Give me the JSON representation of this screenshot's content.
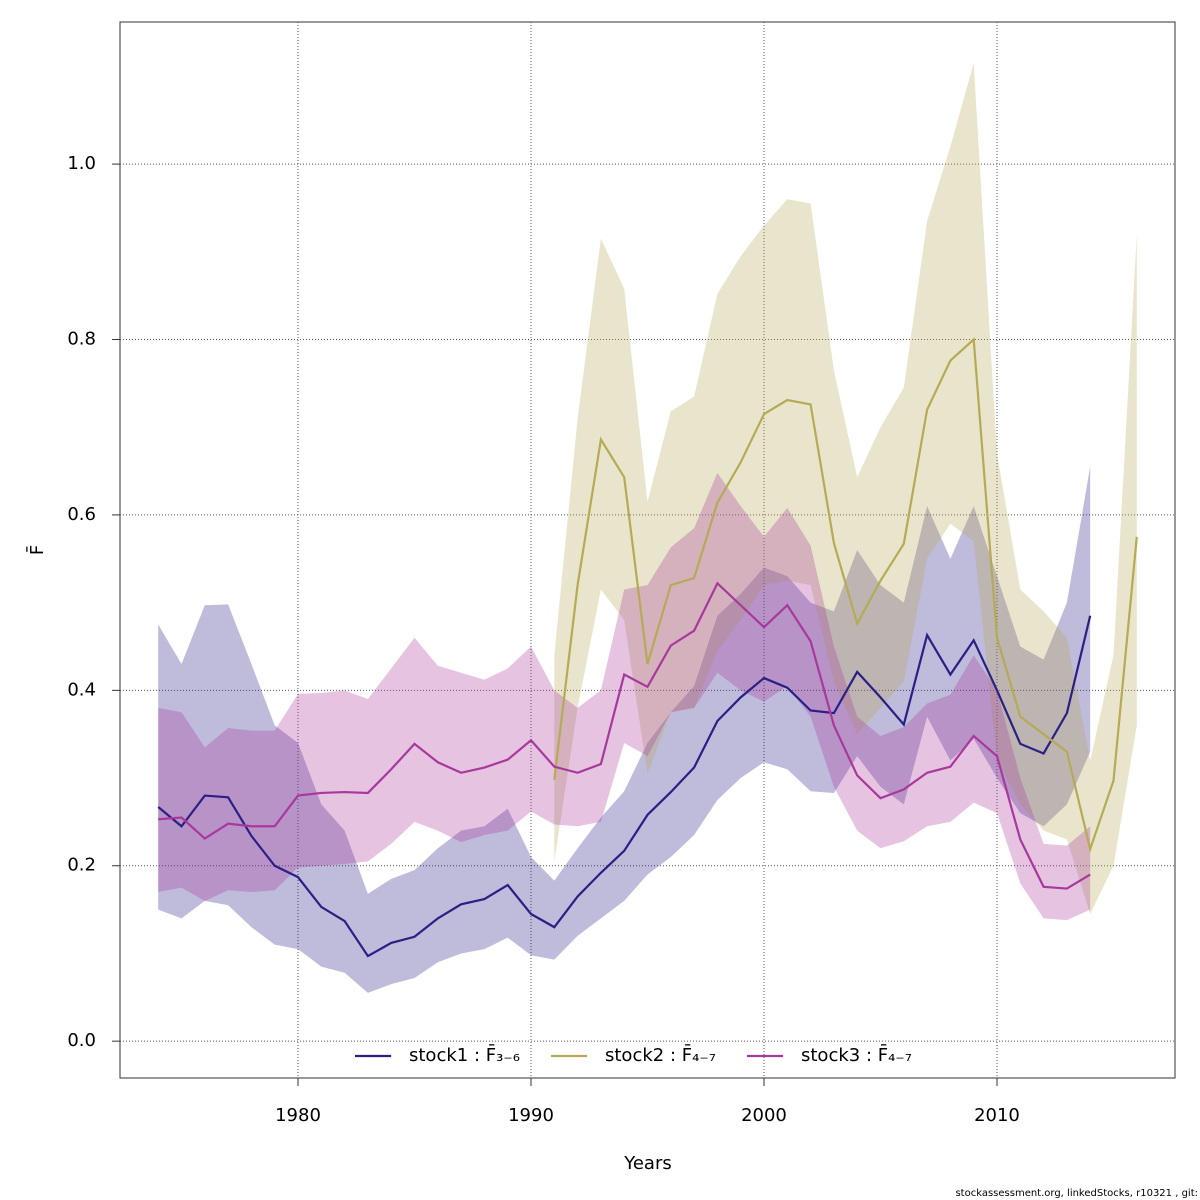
{
  "chart_data": {
    "type": "line",
    "xlabel": "Years",
    "ylabel": "F̄",
    "footer": "stockassessment.org, linkedStocks, r10321 , git:",
    "xlim": [
      1972.36,
      2017.64
    ],
    "ylim": [
      -0.042,
      1.162
    ],
    "xticks": [
      1980,
      1990,
      2000,
      2010
    ],
    "yticks": [
      {
        "value": 0,
        "label": "0.0"
      },
      0.2,
      0.4,
      0.6,
      0.8,
      {
        "value": 1,
        "label": "1.0"
      }
    ],
    "grid": true,
    "legend": "bottom",
    "series": [
      {
        "name": "stock1 : F̄₃₋₆",
        "color": "#2a1f85",
        "x": [
          1974,
          1975,
          1976,
          1977,
          1978,
          1979,
          1980,
          1981,
          1982,
          1983,
          1984,
          1985,
          1986,
          1987,
          1988,
          1989,
          1990,
          1991,
          1992,
          1993,
          1994,
          1995,
          1996,
          1997,
          1998,
          1999,
          2000,
          2001,
          2002,
          2003,
          2004,
          2005,
          2006,
          2007,
          2008,
          2009,
          2010,
          2011,
          2012,
          2013,
          2014
        ],
        "values": [
          0.267,
          0.245,
          0.28,
          0.278,
          0.234,
          0.2,
          0.187,
          0.153,
          0.137,
          0.097,
          0.112,
          0.119,
          0.14,
          0.156,
          0.162,
          0.178,
          0.145,
          0.13,
          0.165,
          0.192,
          0.217,
          0.258,
          0.284,
          0.312,
          0.365,
          0.392,
          0.414,
          0.403,
          0.377,
          0.374,
          0.421,
          0.392,
          0.361,
          0.463,
          0.418,
          0.457,
          0.4,
          0.339,
          0.328,
          0.374,
          0.485
        ],
        "upper": [
          0.475,
          0.43,
          0.497,
          0.498,
          0.43,
          0.36,
          0.34,
          0.27,
          0.24,
          0.168,
          0.185,
          0.195,
          0.22,
          0.24,
          0.245,
          0.265,
          0.21,
          0.183,
          0.22,
          0.255,
          0.285,
          0.34,
          0.375,
          0.405,
          0.485,
          0.51,
          0.54,
          0.53,
          0.5,
          0.49,
          0.56,
          0.52,
          0.5,
          0.61,
          0.55,
          0.61,
          0.53,
          0.45,
          0.435,
          0.5,
          0.655
        ],
        "lower": [
          0.15,
          0.14,
          0.16,
          0.155,
          0.13,
          0.11,
          0.105,
          0.085,
          0.078,
          0.055,
          0.065,
          0.072,
          0.09,
          0.1,
          0.105,
          0.118,
          0.098,
          0.093,
          0.12,
          0.14,
          0.16,
          0.19,
          0.21,
          0.235,
          0.275,
          0.3,
          0.318,
          0.31,
          0.285,
          0.283,
          0.325,
          0.29,
          0.27,
          0.37,
          0.32,
          0.345,
          0.3,
          0.26,
          0.245,
          0.27,
          0.33
        ]
      },
      {
        "name": "stock2 : F̄₄₋₇",
        "color": "#b5aa55",
        "x": [
          1991,
          1992,
          1993,
          1994,
          1995,
          1996,
          1997,
          1998,
          1999,
          2000,
          2001,
          2002,
          2003,
          2004,
          2005,
          2006,
          2007,
          2008,
          2009,
          2010,
          2011,
          2012,
          2013,
          2014,
          2015,
          2016
        ],
        "values": [
          0.298,
          0.52,
          0.686,
          0.643,
          0.43,
          0.52,
          0.528,
          0.614,
          0.66,
          0.715,
          0.731,
          0.726,
          0.568,
          0.476,
          0.525,
          0.567,
          0.72,
          0.776,
          0.8,
          0.46,
          0.37,
          0.35,
          0.33,
          0.219,
          0.297,
          0.575
        ],
        "upper": [
          0.44,
          0.71,
          0.915,
          0.858,
          0.615,
          0.718,
          0.735,
          0.852,
          0.895,
          0.93,
          0.96,
          0.955,
          0.765,
          0.643,
          0.7,
          0.745,
          0.935,
          1.02,
          1.115,
          0.67,
          0.515,
          0.49,
          0.46,
          0.32,
          0.44,
          0.92
        ],
        "lower": [
          0.205,
          0.38,
          0.515,
          0.48,
          0.305,
          0.375,
          0.38,
          0.445,
          0.48,
          0.52,
          0.525,
          0.52,
          0.41,
          0.35,
          0.38,
          0.41,
          0.55,
          0.59,
          0.57,
          0.32,
          0.27,
          0.24,
          0.23,
          0.145,
          0.2,
          0.36
        ]
      },
      {
        "name": "stock3 : F̄₄₋₇",
        "color": "#a8399c",
        "x": [
          1974,
          1975,
          1976,
          1977,
          1978,
          1979,
          1980,
          1981,
          1982,
          1983,
          1984,
          1985,
          1986,
          1987,
          1988,
          1989,
          1990,
          1991,
          1992,
          1993,
          1994,
          1995,
          1996,
          1997,
          1998,
          1999,
          2000,
          2001,
          2002,
          2003,
          2004,
          2005,
          2006,
          2007,
          2008,
          2009,
          2010,
          2011,
          2012,
          2013,
          2014
        ],
        "values": [
          0.253,
          0.255,
          0.231,
          0.248,
          0.245,
          0.245,
          0.28,
          0.283,
          0.284,
          0.283,
          0.31,
          0.339,
          0.318,
          0.306,
          0.312,
          0.321,
          0.343,
          0.313,
          0.306,
          0.316,
          0.418,
          0.404,
          0.451,
          0.468,
          0.522,
          0.497,
          0.472,
          0.497,
          0.456,
          0.36,
          0.303,
          0.277,
          0.287,
          0.306,
          0.313,
          0.348,
          0.325,
          0.23,
          0.176,
          0.174,
          0.19
        ],
        "upper": [
          0.38,
          0.375,
          0.335,
          0.357,
          0.354,
          0.354,
          0.396,
          0.397,
          0.4,
          0.39,
          0.425,
          0.46,
          0.428,
          0.42,
          0.412,
          0.425,
          0.45,
          0.4,
          0.38,
          0.4,
          0.515,
          0.52,
          0.563,
          0.585,
          0.648,
          0.61,
          0.575,
          0.608,
          0.565,
          0.45,
          0.37,
          0.348,
          0.358,
          0.385,
          0.395,
          0.44,
          0.4,
          0.3,
          0.225,
          0.223,
          0.245
        ],
        "lower": [
          0.17,
          0.175,
          0.16,
          0.172,
          0.17,
          0.172,
          0.198,
          0.2,
          0.202,
          0.205,
          0.225,
          0.25,
          0.24,
          0.227,
          0.235,
          0.24,
          0.262,
          0.247,
          0.245,
          0.25,
          0.34,
          0.325,
          0.375,
          0.38,
          0.42,
          0.4,
          0.387,
          0.405,
          0.37,
          0.29,
          0.24,
          0.22,
          0.228,
          0.245,
          0.25,
          0.272,
          0.26,
          0.18,
          0.14,
          0.138,
          0.15
        ]
      }
    ]
  }
}
